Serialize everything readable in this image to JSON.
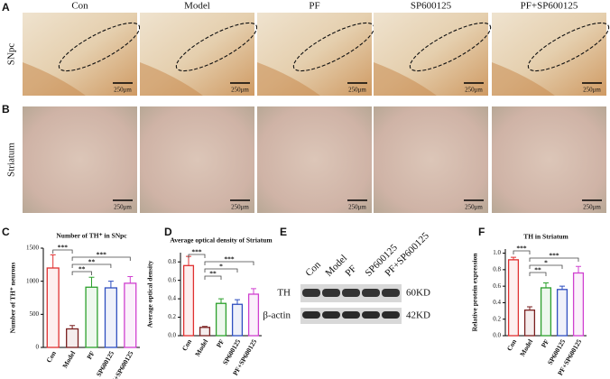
{
  "panel_labels": [
    "A",
    "B",
    "C",
    "D",
    "E",
    "F"
  ],
  "columns": [
    "Con",
    "Model",
    "PF",
    "SP600125",
    "PF+SP600125"
  ],
  "rows": [
    "SNpc",
    "Striatum"
  ],
  "scale_bar": "250μm",
  "blot": {
    "lanes": [
      "Con",
      "Model",
      "PF",
      "SP600125",
      "PF+SP600125"
    ],
    "proteins": [
      "TH",
      "β-actin"
    ],
    "sizes": [
      "60KD",
      "42KD"
    ]
  },
  "chart_data": [
    {
      "type": "bar",
      "title": "Number of TH⁺ in SNpc",
      "y_label": "Number of TH⁺ neurons",
      "categories": [
        "Con",
        "Model",
        "PF",
        "SP600125",
        "PF+SP600125"
      ],
      "values": [
        1200,
        280,
        910,
        900,
        970
      ],
      "errors": [
        200,
        50,
        150,
        100,
        100
      ],
      "colors": [
        "#e03030",
        "#7a1f1f",
        "#2ca02c",
        "#2f4fc0",
        "#d040d0"
      ],
      "ylim": [
        0,
        1500
      ],
      "yticks": [
        0,
        500,
        1000,
        1500
      ],
      "significance": [
        {
          "label": "***",
          "from": 0,
          "to": 1
        },
        {
          "label": "***",
          "from": 1,
          "to": 4
        },
        {
          "label": "**",
          "from": 1,
          "to": 3
        },
        {
          "label": "**",
          "from": 1,
          "to": 2
        }
      ]
    },
    {
      "type": "bar",
      "title": "Average optical density of Striatum",
      "y_label": "Average optical density",
      "categories": [
        "Con",
        "Model",
        "PF",
        "SP600125",
        "PF+SP600125"
      ],
      "values": [
        0.76,
        0.09,
        0.35,
        0.34,
        0.45
      ],
      "errors": [
        0.1,
        0.01,
        0.05,
        0.05,
        0.06
      ],
      "colors": [
        "#e03030",
        "#7a1f1f",
        "#2ca02c",
        "#2f4fc0",
        "#d040d0"
      ],
      "ylim": [
        0,
        0.9
      ],
      "yticks": [
        {
          "value": 0,
          "label": "0.0"
        },
        0.2,
        0.4,
        0.6,
        0.8
      ],
      "significance": [
        {
          "label": "***",
          "from": 0,
          "to": 1
        },
        {
          "label": "***",
          "from": 1,
          "to": 4
        },
        {
          "label": "*",
          "from": 1,
          "to": 3
        },
        {
          "label": "**",
          "from": 1,
          "to": 2
        }
      ]
    },
    {
      "type": "bar",
      "title": "TH in Striatum",
      "y_label": "Relative protein expression",
      "categories": [
        "Con",
        "Model",
        "PF",
        "SP600125",
        "PF+SP600125"
      ],
      "values": [
        0.92,
        0.31,
        0.58,
        0.56,
        0.76
      ],
      "errors": [
        0.03,
        0.04,
        0.06,
        0.04,
        0.08
      ],
      "colors": [
        "#e03030",
        "#7a1f1f",
        "#2ca02c",
        "#2f4fc0",
        "#d040d0"
      ],
      "ylim": [
        0,
        1.05
      ],
      "yticks": [
        {
          "value": 0,
          "label": "0.0"
        },
        0.2,
        0.4,
        0.6,
        0.8,
        {
          "value": 1,
          "label": "1.0"
        }
      ],
      "significance": [
        {
          "label": "***",
          "from": 0,
          "to": 1
        },
        {
          "label": "***",
          "from": 1,
          "to": 4
        },
        {
          "label": "*",
          "from": 1,
          "to": 3
        },
        {
          "label": "**",
          "from": 1,
          "to": 2
        }
      ]
    }
  ]
}
